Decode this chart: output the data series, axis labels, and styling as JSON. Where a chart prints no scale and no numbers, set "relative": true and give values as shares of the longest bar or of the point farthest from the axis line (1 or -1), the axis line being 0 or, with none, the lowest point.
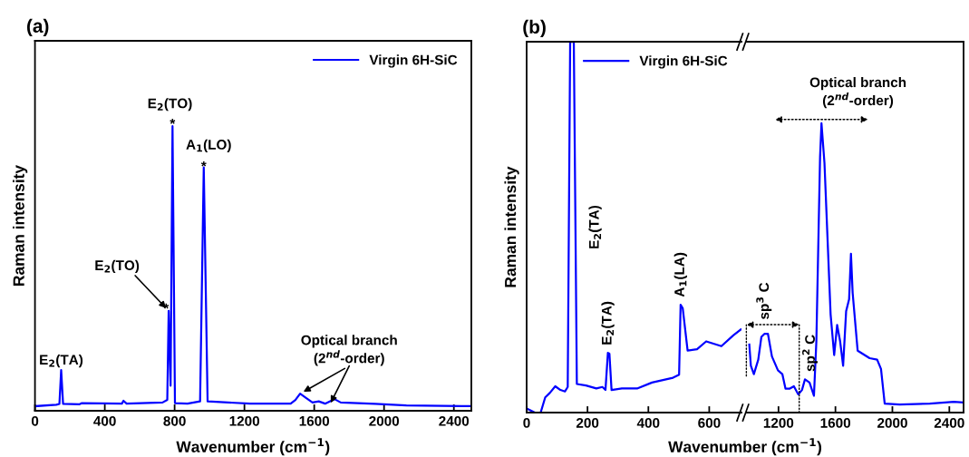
{
  "chart_data": [
    {
      "type": "line",
      "title": "(a)",
      "xlabel": "Wavenumber (cm$^{−1}$)",
      "ylabel": "Raman intensity",
      "relative": true,
      "xlim": [
        0,
        2500
      ],
      "xticks": [
        0,
        400,
        800,
        1200,
        1600,
        2000,
        2400
      ],
      "tick_labels": "x",
      "legend": "top right",
      "marker": "none",
      "line_style": "solid",
      "x": [
        0,
        122,
        140,
        150,
        161,
        256,
        269,
        498,
        507,
        525,
        731,
        758,
        766,
        777,
        788,
        802,
        874,
        946,
        967,
        989,
        1107,
        1232,
        1465,
        1492,
        1519,
        1555,
        1590,
        1626,
        1662,
        1716,
        1752,
        1949,
        2128,
        2500
      ],
      "series": [
        {
          "name": "Virgin 6H-SiC",
          "color": "#0000ff",
          "values": [
            0.016,
            0.021,
            0.024,
            0.143,
            0.024,
            0.023,
            0.027,
            0.025,
            0.035,
            0.025,
            0.029,
            0.038,
            0.351,
            0.088,
            1.0,
            0.027,
            0.025,
            0.033,
            0.855,
            0.033,
            0.029,
            0.025,
            0.025,
            0.038,
            0.06,
            0.044,
            0.029,
            0.033,
            0.025,
            0.041,
            0.029,
            0.024,
            0.019,
            0.016
          ]
        }
      ],
      "annotations": [
        {
          "text": "E$_{2}$(TA)",
          "x": 150,
          "y": 0.143
        },
        {
          "text": "*",
          "x": 766,
          "y": 0.351
        },
        {
          "text": "E$_{2}$(TO)",
          "x": 766,
          "y": 0.351
        },
        {
          "text": "*",
          "x": 788,
          "y": 1.0
        },
        {
          "text": "E$_{2}$(TO)",
          "x": 788,
          "y": 1.0
        },
        {
          "text": "*",
          "x": 967,
          "y": 0.855
        },
        {
          "text": "A$_{1}$(LO)",
          "x": 967,
          "y": 0.855
        },
        {
          "text": "Optical branch\n(2$^{nd}$-order)",
          "x": 1519,
          "y": 0.06
        }
      ]
    },
    {
      "type": "line",
      "title": "(b)",
      "xlabel": "Wavenumber (cm$^{−1}$)",
      "ylabel": "Raman intensity",
      "relative": true,
      "xlim": [
        0,
        706
      ],
      "xticks": [
        0,
        200,
        400,
        600
      ],
      "tick_labels": "x",
      "legend": "top right",
      "marker": "none",
      "line_style": "solid",
      "x": [
        0,
        27,
        46,
        61,
        76,
        94,
        111,
        126,
        135,
        143,
        155,
        165,
        195,
        229,
        249,
        259,
        267,
        272,
        279,
        313,
        363,
        412,
        481,
        501,
        506,
        513,
        529,
        560,
        590,
        640,
        679,
        704
      ],
      "series": [
        {
          "name": "Virgin 6H-SiC",
          "color": "#0000ff",
          "values": [
            0.011,
            0,
            0,
            0.041,
            0.053,
            0.071,
            0.061,
            0.057,
            0.069,
            1.0,
            1.0,
            0.077,
            0.073,
            0.065,
            0.069,
            0.061,
            0.161,
            0.159,
            0.061,
            0.065,
            0.065,
            0.081,
            0.094,
            0.102,
            0.291,
            0.281,
            0.167,
            0.171,
            0.192,
            0.179,
            0.208,
            0.224
          ]
        }
      ],
      "annotations": [
        {
          "text": "E$_{2}$(TA)",
          "x": 155,
          "y": 0.5
        },
        {
          "text": "E$_{2}$(TA)",
          "x": 267,
          "y": 0.161
        },
        {
          "text": "A$_{1}$(LA)",
          "x": 506,
          "y": 0.291
        }
      ]
    },
    {
      "type": "line",
      "relative": true,
      "xlim": [
        972,
        2500
      ],
      "xticks": [
        1200,
        1600,
        2000,
        2400
      ],
      "tick_labels": "x",
      "marker": "none",
      "line_style": "solid",
      "x": [
        995,
        1006,
        1027,
        1058,
        1080,
        1101,
        1126,
        1154,
        1196,
        1227,
        1249,
        1280,
        1308,
        1339,
        1365,
        1386,
        1418,
        1449,
        1466,
        1492,
        1502,
        1523,
        1566,
        1591,
        1612,
        1633,
        1654,
        1675,
        1696,
        1709,
        1721,
        1756,
        1840,
        1893,
        1920,
        1946,
        2051,
        2263,
        2432,
        2495
      ],
      "series": [
        {
          "color": "#0000ff",
          "values": [
            0.235,
            0.162,
            0.133,
            0.183,
            0.262,
            0.272,
            0.272,
            0.194,
            0.146,
            0.133,
            0.083,
            0.083,
            0.091,
            0.063,
            0.078,
            0.115,
            0.104,
            0.058,
            0.246,
            0.883,
            1.0,
            0.862,
            0.34,
            0.199,
            0.303,
            0.246,
            0.162,
            0.35,
            0.392,
            0.549,
            0.413,
            0.214,
            0.188,
            0.183,
            0.151,
            0.031,
            0.028,
            0.031,
            0.037,
            0.035
          ]
        }
      ],
      "annotations": [
        "sp$^{3}$ C",
        {
          "text": "sp$^{2}$ C",
          "x": 1386,
          "y": 0.115
        },
        {
          "text": "Optical branch\n(2$^{nd}$-order)",
          "x": 1502,
          "y": 1.0
        }
      ]
    }
  ]
}
